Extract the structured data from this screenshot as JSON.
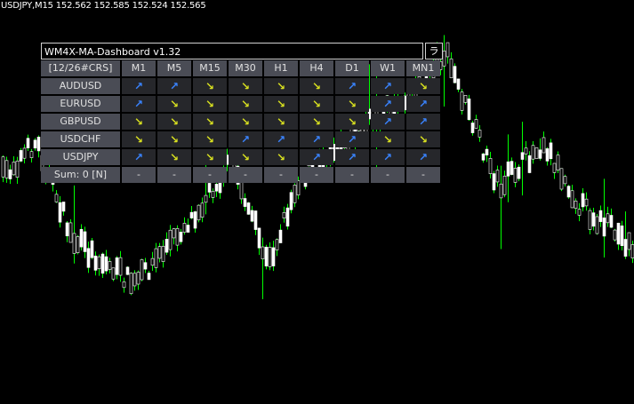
{
  "chart_header": "USDJPY,M15  152.562 152.585 152.524 152.565",
  "dashboard": {
    "title": "WM4X-MA-Dashboard v1.32",
    "minimize_label": "ラ",
    "corner_label": "[12/26#CRS]",
    "timeframes": [
      "M1",
      "M5",
      "M15",
      "M30",
      "H1",
      "H4",
      "D1",
      "W1",
      "MN1"
    ],
    "rows": [
      {
        "symbol": "AUDUSD",
        "signals": [
          "up",
          "up",
          "down",
          "down",
          "down",
          "down",
          "up",
          "up",
          "down"
        ]
      },
      {
        "symbol": "EURUSD",
        "signals": [
          "up",
          "down",
          "down",
          "down",
          "down",
          "down",
          "down",
          "up",
          "up"
        ]
      },
      {
        "symbol": "GBPUSD",
        "signals": [
          "down",
          "down",
          "down",
          "down",
          "down",
          "down",
          "down",
          "up",
          "up"
        ]
      },
      {
        "symbol": "USDCHF",
        "signals": [
          "down",
          "down",
          "down",
          "up",
          "up",
          "up",
          "up",
          "down",
          "down"
        ]
      },
      {
        "symbol": "USDJPY",
        "signals": [
          "up",
          "down",
          "down",
          "down",
          "down",
          "up",
          "up",
          "up",
          "up"
        ]
      }
    ],
    "sum_label": "Sum: 0 [N]",
    "sum_values": [
      "-",
      "-",
      "-",
      "-",
      "-",
      "-",
      "-",
      "-",
      "-"
    ],
    "colors": {
      "up": "#3a84ff",
      "down": "#d8e020",
      "candle_wick": "#00ff00",
      "candle_body": "#ffffff"
    }
  }
}
